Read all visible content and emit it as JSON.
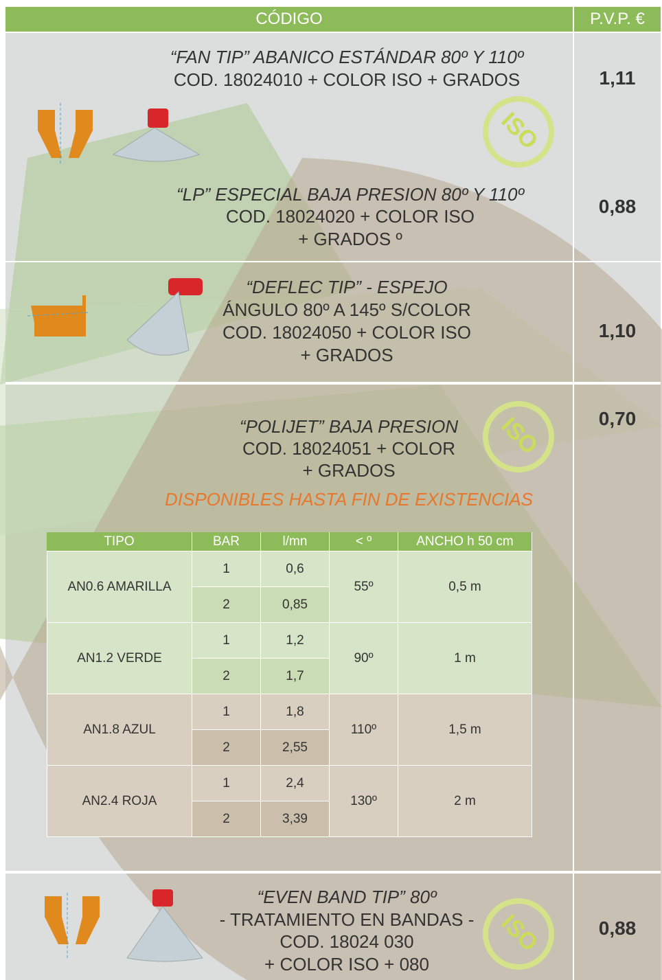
{
  "header": {
    "code": "CÓDIGO",
    "price": "P.V.P. €"
  },
  "badge": "ISO",
  "products": [
    {
      "lines": [
        "“FAN TIP” ABANICO ESTÁNDAR 80º Y 110º",
        "COD. 18024010 + COLOR ISO + GRADOS"
      ],
      "price": "1,11"
    },
    {
      "lines": [
        "“LP” ESPECIAL BAJA PRESION 80º Y 110º",
        "COD. 18024020 + COLOR ISO",
        "+ GRADOS º"
      ],
      "price": "0,88"
    },
    {
      "lines": [
        "“DEFLEC TIP” - ESPEJO",
        "ÁNGULO 80º A 145º S/COLOR",
        "COD. 18024050 + COLOR ISO",
        "+ GRADOS"
      ],
      "price": "1,10"
    },
    {
      "lines": [
        "“POLIJET” BAJA PRESION",
        "COD. 18024051 + COLOR",
        "+ GRADOS"
      ],
      "price": "0,70",
      "note": "DISPONIBLES HASTA FIN DE EXISTENCIAS"
    },
    {
      "lines": [
        "“EVEN BAND TIP” 80º",
        "- TRATAMIENTO EN BANDAS -",
        "COD. 18024 030",
        "+ COLOR ISO + 080"
      ],
      "price": "0,88"
    }
  ],
  "table": {
    "headers": [
      "TIPO",
      "BAR",
      "l/mn",
      "< º",
      "ANCHO h 50 cm"
    ],
    "groups": [
      {
        "tipo": "AN0.6 AMARILLA",
        "angle": "55º",
        "width": "0,5 m",
        "rows": [
          [
            "1",
            "0,6"
          ],
          [
            "2",
            "0,85"
          ]
        ]
      },
      {
        "tipo": "AN1.2 VERDE",
        "angle": "90º",
        "width": "1 m",
        "rows": [
          [
            "1",
            "1,2"
          ],
          [
            "2",
            "1,7"
          ]
        ]
      },
      {
        "tipo": "AN1.8 AZUL",
        "angle": "110º",
        "width": "1,5 m",
        "rows": [
          [
            "1",
            "1,8"
          ],
          [
            "2",
            "2,55"
          ]
        ]
      },
      {
        "tipo": "AN2.4 ROJA",
        "angle": "130º",
        "width": "2 m",
        "rows": [
          [
            "1",
            "2,4"
          ],
          [
            "2",
            "3,39"
          ]
        ]
      }
    ]
  }
}
